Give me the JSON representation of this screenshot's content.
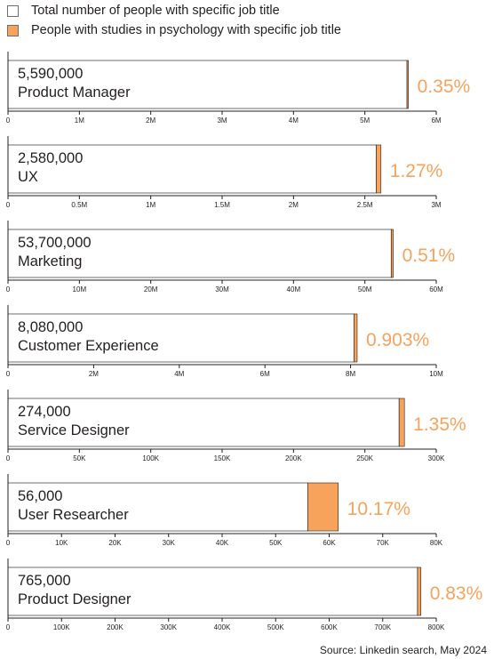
{
  "legend": {
    "total_label": "Total number of people with specific job title",
    "psych_label": "People with studies in psychology with specific job title"
  },
  "colors": {
    "total_fill": "#ffffff",
    "psych_fill": "#f7a35c",
    "axis": "#231f20",
    "bar_border": "#6d6e71",
    "percent_text": "#f7a35c"
  },
  "source": "Source: Linkedin search, May 2024",
  "chart_data": [
    {
      "type": "bar",
      "orientation": "horizontal",
      "stacked": true,
      "value_label": "5,590,000",
      "category": "Product Manager",
      "total": 5590000,
      "psychology": 19565,
      "percent_label": "0.35%",
      "xlim": [
        0,
        6000000
      ],
      "ticks": [
        0,
        1000000,
        2000000,
        3000000,
        4000000,
        5000000,
        6000000
      ],
      "tick_labels": [
        "0",
        "1M",
        "2M",
        "3M",
        "4M",
        "5M",
        "6M"
      ]
    },
    {
      "type": "bar",
      "orientation": "horizontal",
      "stacked": true,
      "value_label": "2,580,000",
      "category": "UX",
      "total": 2580000,
      "psychology": 32766,
      "percent_label": "1.27%",
      "xlim": [
        0,
        3000000
      ],
      "ticks": [
        0,
        500000,
        1000000,
        1500000,
        2000000,
        2500000,
        3000000
      ],
      "tick_labels": [
        "0",
        "0.5M",
        "1M",
        "1.5M",
        "2M",
        "2.5M",
        "3M"
      ]
    },
    {
      "type": "bar",
      "orientation": "horizontal",
      "stacked": true,
      "value_label": "53,700,000",
      "category": "Marketing",
      "total": 53700000,
      "psychology": 273870,
      "percent_label": "0.51%",
      "xlim": [
        0,
        60000000
      ],
      "ticks": [
        0,
        10000000,
        20000000,
        30000000,
        40000000,
        50000000,
        60000000
      ],
      "tick_labels": [
        "0",
        "10M",
        "20M",
        "30M",
        "40M",
        "50M",
        "60M"
      ]
    },
    {
      "type": "bar",
      "orientation": "horizontal",
      "stacked": true,
      "value_label": "8,080,000",
      "category": "Customer Experience",
      "total": 8080000,
      "psychology": 72962,
      "percent_label": "0.903%",
      "xlim": [
        0,
        10000000
      ],
      "ticks": [
        0,
        2000000,
        4000000,
        6000000,
        8000000,
        10000000
      ],
      "tick_labels": [
        "0",
        "2M",
        "4M",
        "6M",
        "8M",
        "10M"
      ]
    },
    {
      "type": "bar",
      "orientation": "horizontal",
      "stacked": true,
      "value_label": "274,000",
      "category": "Service Designer",
      "total": 274000,
      "psychology": 3699,
      "percent_label": "1.35%",
      "xlim": [
        0,
        300000
      ],
      "ticks": [
        0,
        50000,
        100000,
        150000,
        200000,
        250000,
        300000
      ],
      "tick_labels": [
        "0",
        "50K",
        "100K",
        "150K",
        "200K",
        "250K",
        "300K"
      ]
    },
    {
      "type": "bar",
      "orientation": "horizontal",
      "stacked": true,
      "value_label": "56,000",
      "category": "User Researcher",
      "total": 56000,
      "psychology": 5695,
      "percent_label": "10.17%",
      "xlim": [
        0,
        80000
      ],
      "ticks": [
        0,
        10000,
        20000,
        30000,
        40000,
        50000,
        60000,
        70000,
        80000
      ],
      "tick_labels": [
        "0",
        "10K",
        "20K",
        "30K",
        "40K",
        "50K",
        "60K",
        "70K",
        "80K"
      ]
    },
    {
      "type": "bar",
      "orientation": "horizontal",
      "stacked": true,
      "value_label": "765,000",
      "category": "Product Designer",
      "total": 765000,
      "psychology": 6350,
      "percent_label": "0.83%",
      "xlim": [
        0,
        800000
      ],
      "ticks": [
        0,
        100000,
        200000,
        300000,
        400000,
        500000,
        600000,
        700000,
        800000
      ],
      "tick_labels": [
        "0",
        "100K",
        "200K",
        "300K",
        "400K",
        "500K",
        "600K",
        "700K",
        "800K"
      ]
    }
  ]
}
